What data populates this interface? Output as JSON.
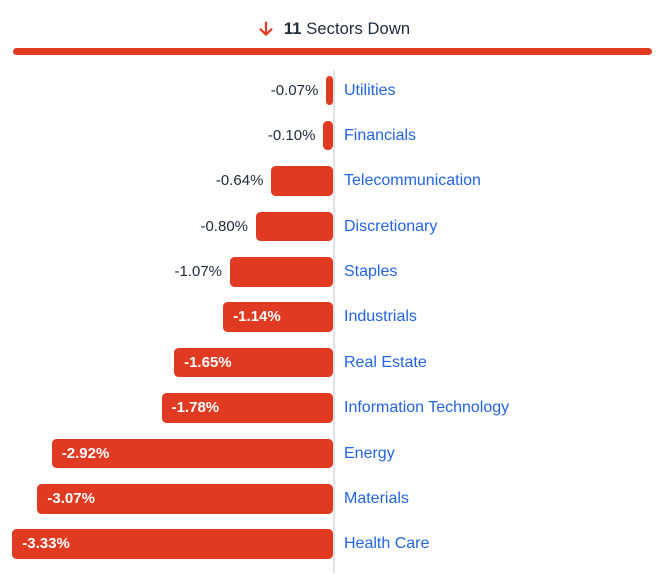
{
  "header": {
    "count": "11",
    "label": "Sectors Down",
    "icon": "arrow-down-icon"
  },
  "colors": {
    "bar_red": "#E03A22",
    "sector_blue": "#2264E4",
    "text_dark": "#1E2A3C",
    "axis_gray": "#E4E4E6",
    "value_inside_white": "#FFFFFF"
  },
  "chart_data": {
    "type": "bar",
    "orientation": "horizontal",
    "title": "11 Sectors Down",
    "unit": "%",
    "xlim": [
      -3.47,
      0
    ],
    "grid": false,
    "legend": "none",
    "categories": [
      "Utilities",
      "Financials",
      "Telecommunication",
      "Discretionary",
      "Staples",
      "Industrials",
      "Real Estate",
      "Information Technology",
      "Energy",
      "Materials",
      "Health Care"
    ],
    "values": [
      -0.07,
      -0.1,
      -0.64,
      -0.8,
      -1.07,
      -1.14,
      -1.65,
      -1.78,
      -2.92,
      -3.07,
      -3.33
    ],
    "value_labels": [
      "-0.07%",
      "-0.10%",
      "-0.64%",
      "-0.80%",
      "-1.07%",
      "-1.14%",
      "-1.65%",
      "-1.78%",
      "-2.92%",
      "-3.07%",
      "-3.33%"
    ]
  }
}
